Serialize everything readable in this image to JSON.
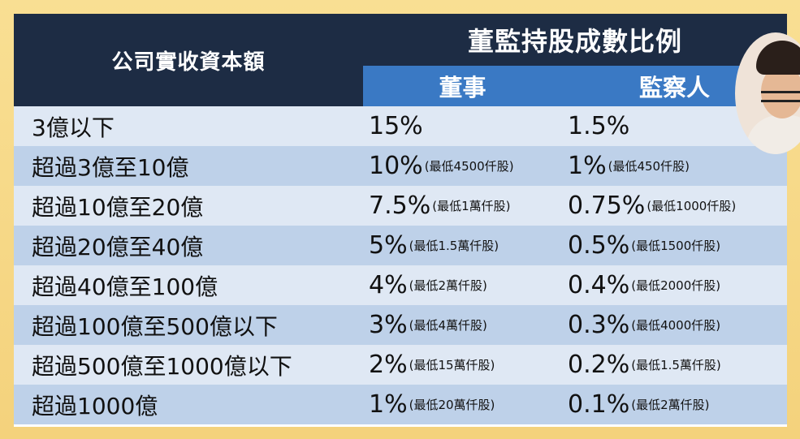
{
  "header": {
    "col1_title": "公司實收資本額",
    "group_title": "董監持股成數比例",
    "col2_title": "董事",
    "col3_title": "監察人"
  },
  "rows": [
    {
      "capital": "3億以下",
      "director_pct": "15%",
      "director_note": "",
      "supervisor_pct": "1.5%",
      "supervisor_note": ""
    },
    {
      "capital": "超過3億至10億",
      "director_pct": "10%",
      "director_note": "(最低4500仟股)",
      "supervisor_pct": "1%",
      "supervisor_note": "(最低450仟股)"
    },
    {
      "capital": "超過10億至20億",
      "director_pct": "7.5%",
      "director_note": "(最低1萬仟股)",
      "supervisor_pct": "0.75%",
      "supervisor_note": "(最低1000仟股)"
    },
    {
      "capital": "超過20億至40億",
      "director_pct": "5%",
      "director_note": "(最低1.5萬仟股)",
      "supervisor_pct": "0.5%",
      "supervisor_note": "(最低1500仟股)"
    },
    {
      "capital": "超過40億至100億",
      "director_pct": "4%",
      "director_note": "(最低2萬仟股)",
      "supervisor_pct": "0.4%",
      "supervisor_note": "(最低2000仟股)"
    },
    {
      "capital": "超過100億至500億以下",
      "director_pct": "3%",
      "director_note": "(最低4萬仟股)",
      "supervisor_pct": "0.3%",
      "supervisor_note": "(最低4000仟股)"
    },
    {
      "capital": "超過500億至1000億以下",
      "director_pct": "2%",
      "director_note": "(最低15萬仟股)",
      "supervisor_pct": "0.2%",
      "supervisor_note": "(最低1.5萬仟股)"
    },
    {
      "capital": "超過1000億",
      "director_pct": "1%",
      "director_note": "(最低20萬仟股)",
      "supervisor_pct": "0.1%",
      "supervisor_note": "(最低2萬仟股)"
    }
  ],
  "colors": {
    "background": "#f7d98a",
    "header_dark": "#1d2c44",
    "header_blue": "#3a79c4",
    "row_light": "#dfe8f4",
    "row_mid": "#bed1e9"
  }
}
